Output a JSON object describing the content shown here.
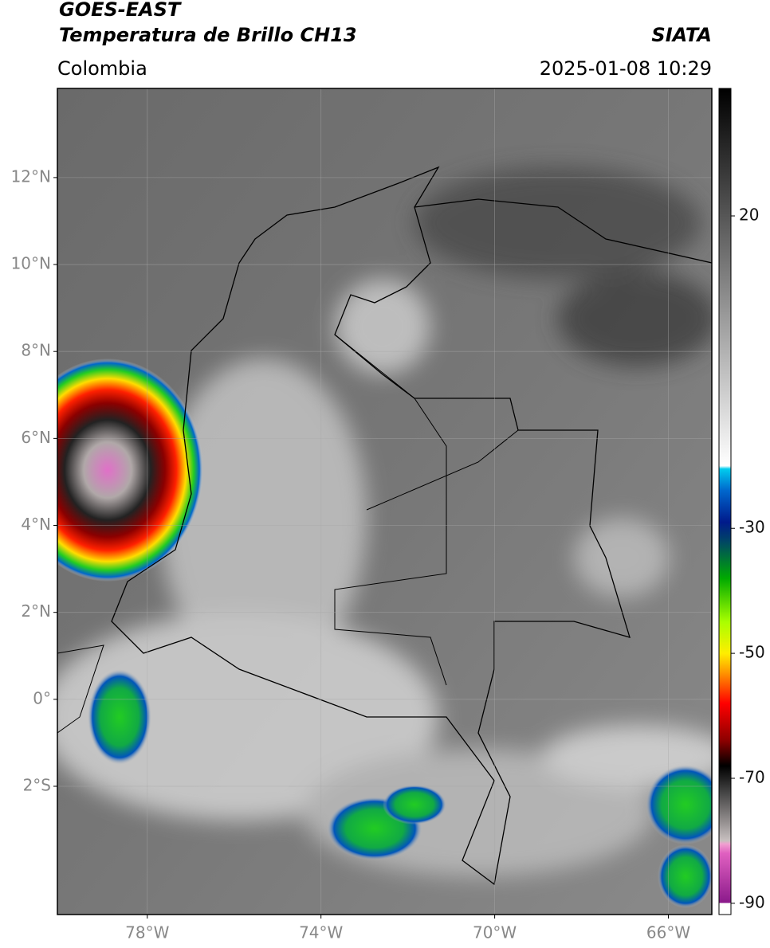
{
  "header": {
    "title": "GOES-EAST",
    "subtitle": "Temperatura de Brillo CH13",
    "region": "Colombia",
    "source": "SIATA",
    "datetime": "2025-01-08 10:29"
  },
  "map": {
    "xlim": [
      -80.07,
      -65.0
    ],
    "ylim": [
      -4.95,
      14.05
    ],
    "xticks": [
      {
        "value": -78,
        "label": "78°W"
      },
      {
        "value": -74,
        "label": "74°W"
      },
      {
        "value": -70,
        "label": "70°W"
      },
      {
        "value": -66,
        "label": "66°W"
      }
    ],
    "yticks": [
      {
        "value": 12,
        "label": "12°N"
      },
      {
        "value": 10,
        "label": "10°N"
      },
      {
        "value": 8,
        "label": "8°N"
      },
      {
        "value": 6,
        "label": "6°N"
      },
      {
        "value": 4,
        "label": "4°N"
      },
      {
        "value": 2,
        "label": "2°N"
      },
      {
        "value": 0,
        "label": "0°"
      },
      {
        "value": -2,
        "label": "2°S"
      }
    ],
    "grid": true
  },
  "colorbar": {
    "lim": [
      -91.8,
      40.4
    ],
    "ticks": [
      20,
      -30,
      -50,
      -70,
      -90
    ],
    "colormap": [
      {
        "value": -91.8,
        "color": "#ffffff"
      },
      {
        "value": -90,
        "color": "#ffffff"
      },
      {
        "value": -89.9,
        "color": "#8b1a8b"
      },
      {
        "value": -82,
        "color": "#e060c0"
      },
      {
        "value": -80.5,
        "color": "#f0a0d0"
      },
      {
        "value": -80,
        "color": "#c8c0c0"
      },
      {
        "value": -72,
        "color": "#404040"
      },
      {
        "value": -68,
        "color": "#000000"
      },
      {
        "value": -64,
        "color": "#8b0000"
      },
      {
        "value": -58,
        "color": "#ff0000"
      },
      {
        "value": -53,
        "color": "#ff9900"
      },
      {
        "value": -50,
        "color": "#ffee00"
      },
      {
        "value": -45,
        "color": "#aaff00"
      },
      {
        "value": -38,
        "color": "#00aa00"
      },
      {
        "value": -32,
        "color": "#004466"
      },
      {
        "value": -29,
        "color": "#001a8b"
      },
      {
        "value": -24,
        "color": "#0066cc"
      },
      {
        "value": -20.5,
        "color": "#00ccee"
      },
      {
        "value": -20,
        "color": "#ffffff"
      },
      {
        "value": 40.4,
        "color": "#000000"
      }
    ]
  }
}
